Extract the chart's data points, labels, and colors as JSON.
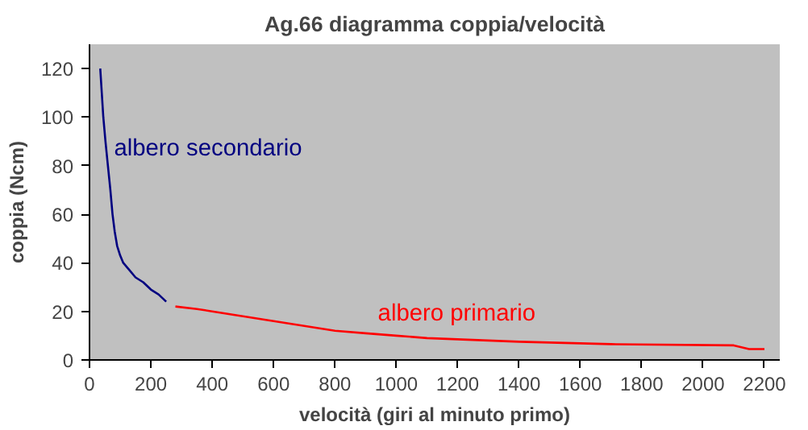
{
  "chart_data": {
    "type": "line",
    "title": "Ag.66 diagramma coppia/velocità",
    "xlabel": "velocità (giri al minuto primo)",
    "ylabel": "coppia (Ncm)",
    "series": [
      {
        "name": "albero secondario",
        "color": "#000080",
        "x": [
          35,
          40,
          45,
          52,
          60,
          68,
          75,
          82,
          90,
          100,
          110,
          130,
          150,
          175,
          200,
          225,
          250
        ],
        "values": [
          120,
          110,
          100,
          90,
          80,
          70,
          60,
          53,
          47,
          43,
          40,
          37,
          34,
          32,
          29,
          27,
          24
        ]
      },
      {
        "name": "albero primario",
        "color": "#ff0000",
        "x": [
          280,
          350,
          400,
          500,
          600,
          700,
          800,
          900,
          1000,
          1100,
          1200,
          1400,
          1700,
          2100,
          2150,
          2200
        ],
        "values": [
          22,
          21,
          20,
          18,
          16,
          14,
          12,
          11,
          10,
          9,
          8.5,
          7.5,
          6.5,
          6,
          4.5,
          4.5
        ]
      }
    ],
    "xlim": [
      0,
      2250
    ],
    "xticks": [
      0,
      200,
      400,
      600,
      800,
      1000,
      1200,
      1400,
      1600,
      1800,
      2000,
      2200
    ],
    "ylim": [
      0,
      130
    ],
    "yticks": [
      0,
      20,
      40,
      60,
      80,
      100,
      120
    ],
    "grid": false
  }
}
